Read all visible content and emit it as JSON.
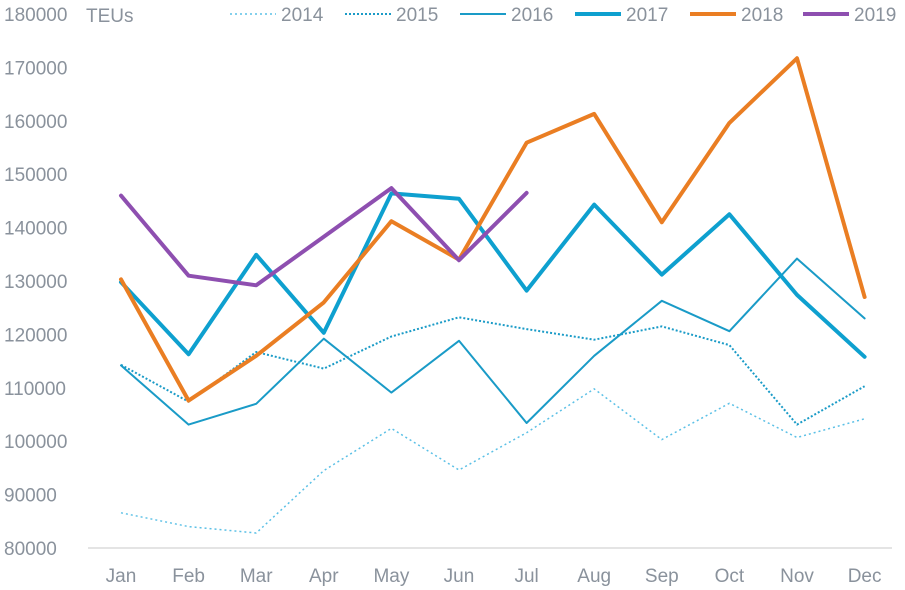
{
  "chart_data": {
    "type": "line",
    "ylabel": "TEUs",
    "ylim": [
      80000,
      180000
    ],
    "yticks": [
      80000,
      90000,
      100000,
      110000,
      120000,
      130000,
      140000,
      150000,
      160000,
      170000,
      180000
    ],
    "grid": false,
    "legend_position": "top",
    "categories": [
      "Jan",
      "Feb",
      "Mar",
      "Apr",
      "May",
      "Jun",
      "Jul",
      "Aug",
      "Sep",
      "Oct",
      "Nov",
      "Dec"
    ],
    "series": [
      {
        "name": "2014",
        "color": "#5bc0e6",
        "style": "dotted",
        "width": 1.5,
        "values": [
          86600,
          84000,
          82800,
          94500,
          102400,
          94600,
          101600,
          109800,
          100300,
          107100,
          100700,
          104200
        ]
      },
      {
        "name": "2015",
        "color": "#1a9bc7",
        "style": "dotted-dense",
        "width": 2,
        "values": [
          114300,
          107400,
          116700,
          113600,
          119600,
          123200,
          121000,
          119000,
          121500,
          118000,
          103100,
          110300
        ]
      },
      {
        "name": "2016",
        "color": "#1a9bc7",
        "style": "solid",
        "width": 2,
        "values": [
          114200,
          103100,
          107000,
          119200,
          109100,
          118800,
          103400,
          116000,
          126300,
          120600,
          134200,
          123000
        ]
      },
      {
        "name": "2017",
        "color": "#0ea0cf",
        "style": "solid",
        "width": 4,
        "values": [
          129800,
          116300,
          134900,
          120300,
          146400,
          145400,
          128200,
          144300,
          131200,
          142500,
          127400,
          115800
        ]
      },
      {
        "name": "2018",
        "color": "#ea7e23",
        "style": "solid",
        "width": 4,
        "values": [
          130300,
          107600,
          116000,
          126000,
          141200,
          134000,
          155900,
          161300,
          141000,
          159600,
          171700,
          127000
        ]
      },
      {
        "name": "2019",
        "color": "#8e4fb0",
        "style": "solid",
        "width": 4,
        "values": [
          146000,
          131000,
          129200,
          138300,
          147400,
          133900,
          146500,
          null,
          null,
          null,
          null,
          null
        ]
      }
    ]
  }
}
